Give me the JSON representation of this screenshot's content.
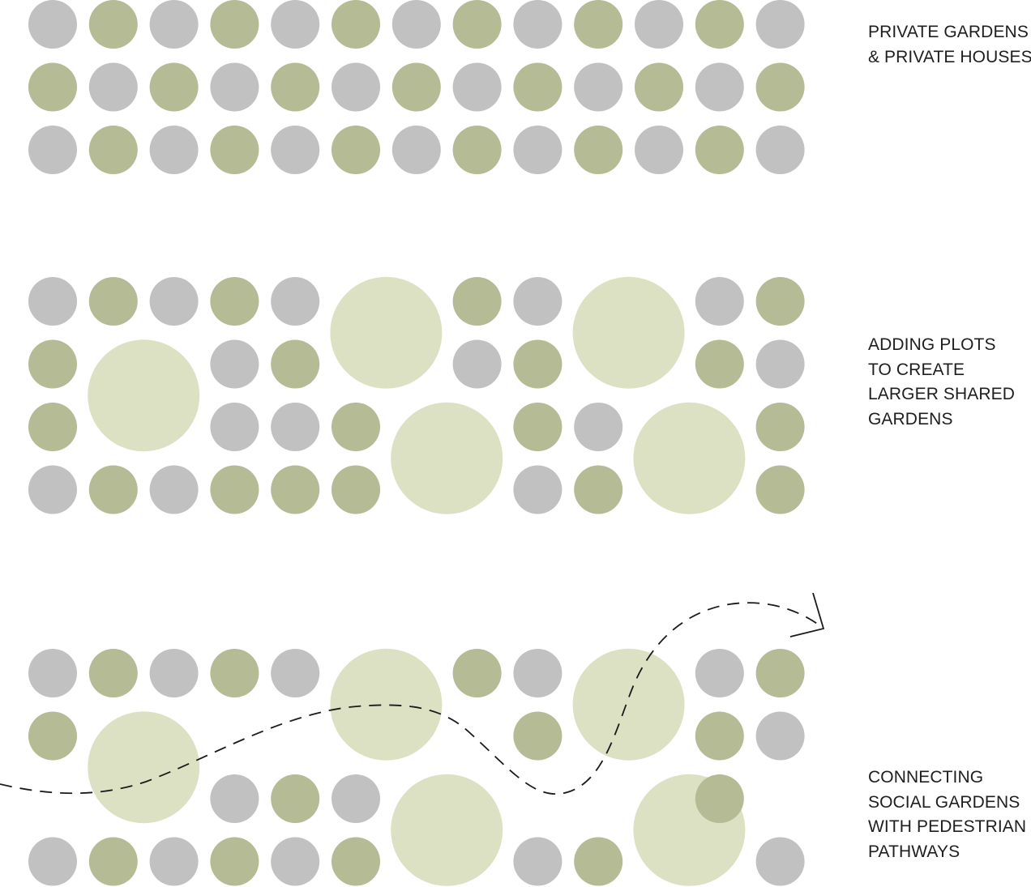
{
  "colors": {
    "house": "#c1c1c1",
    "private_garden": "#b4bb95",
    "shared_garden": "#dde1c3",
    "pathway": "#1a1a1a"
  },
  "legend_meaning": {
    "g": "house",
    "o": "private_garden",
    "L": "shared_garden",
    "-": "empty"
  },
  "panels": [
    {
      "name": "private-gardens-panel",
      "caption_lines": [
        "PRIVATE GARDENS",
        "& PRIVATE HOUSES"
      ],
      "rows": [
        "gogogogogogog",
        "ogogogogogogo",
        "gogogogogogog"
      ],
      "shared_gardens": [],
      "pathway": false
    },
    {
      "name": "shared-gardens-panel",
      "caption_lines": [
        "ADDING PLOTS",
        "TO CREATE",
        "LARGER SHARED",
        "GARDENS"
      ],
      "rows": [
        "gogog--og--go",
        "o--go--go--og",
        "o--ggo--og--o",
        "gogooo--go--o"
      ],
      "shared_gardens": [
        {
          "col": 1.5,
          "row": 1.5
        },
        {
          "col": 5.5,
          "row": 0.5
        },
        {
          "col": 6.5,
          "row": 2.5
        },
        {
          "col": 9.5,
          "row": 0.5
        },
        {
          "col": 10.5,
          "row": 2.5
        }
      ],
      "pathway": false
    },
    {
      "name": "social-gardens-panel",
      "caption_lines": [
        "CONNECTING",
        "SOCIAL GARDENS",
        "WITH PEDESTRIAN",
        "PATHWAYS"
      ],
      "rows": [
        "gogog--og--go",
        "o-------o--og",
        "---gog-----o-",
        "gogogo--go--g"
      ],
      "shared_gardens": [
        {
          "col": 1.5,
          "row": 1.5
        },
        {
          "col": 5.5,
          "row": 0.5
        },
        {
          "col": 6.5,
          "row": 2.5
        },
        {
          "col": 9.5,
          "row": 0.5
        },
        {
          "col": 10.5,
          "row": 2.5
        }
      ],
      "pathway": true
    }
  ]
}
